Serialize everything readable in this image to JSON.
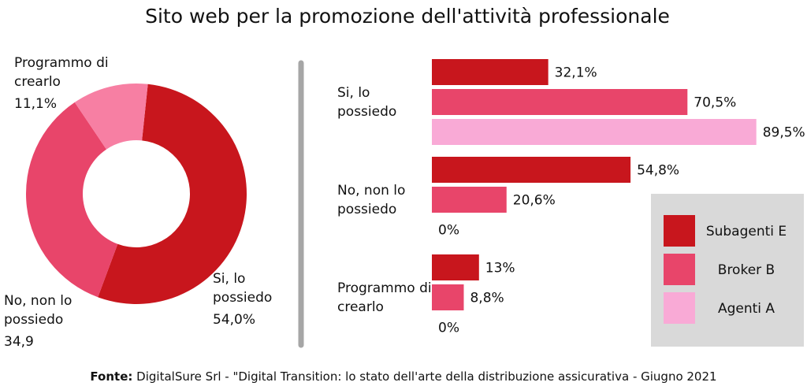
{
  "title": "Sito web per la promozione dell'attività professionale",
  "source": {
    "label": "Fonte:",
    "text": "DigitalSure Srl - \"Digital Transition: lo stato dell'arte della distribuzione assicurativa - Giugno 2021"
  },
  "chart_data": [
    {
      "type": "donut",
      "categories": [
        "Si, lo possiedo",
        "No, non lo possiedo",
        "Programmo di crearlo"
      ],
      "values": [
        54.0,
        34.9,
        11.1
      ],
      "value_labels": [
        "54,0%",
        "34,9",
        "11,1%"
      ],
      "colors": [
        "#c8161d",
        "#e8456a",
        "#f77fa3"
      ]
    },
    {
      "type": "hbar",
      "categories": [
        "Si, lo possiedo",
        "No, non lo possiedo",
        "Programmo di crearlo"
      ],
      "xlim": [
        0,
        100
      ],
      "series": [
        {
          "name": "Subagenti E",
          "color": "#c8161d",
          "values": [
            32.1,
            54.8,
            13
          ],
          "value_labels": [
            "32,1%",
            "54,8%",
            "13%"
          ]
        },
        {
          "name": "Broker B",
          "color": "#e8456a",
          "values": [
            70.5,
            20.6,
            8.8
          ],
          "value_labels": [
            "70,5%",
            "20,6%",
            "8,8%"
          ]
        },
        {
          "name": "Agenti A",
          "color": "#f9aad6",
          "values": [
            89.5,
            0,
            0
          ],
          "value_labels": [
            "89,5%",
            "0%",
            "0%"
          ]
        }
      ],
      "legend": "bottom-right"
    }
  ]
}
